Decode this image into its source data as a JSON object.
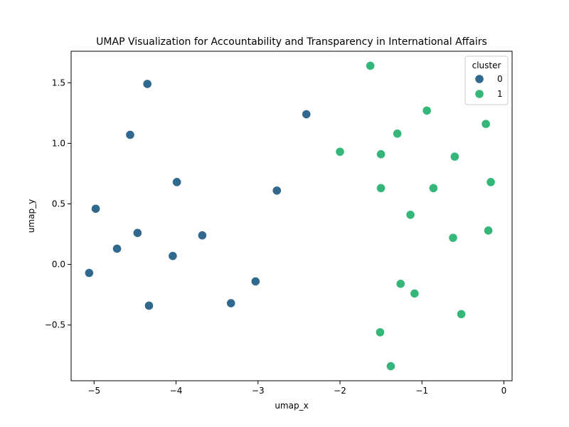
{
  "chart_data": {
    "type": "scatter",
    "title": "UMAP Visualization for Accountability and Transparency in International Affairs",
    "xlabel": "umap_x",
    "ylabel": "umap_y",
    "xlim": [
      -5.28,
      0.1
    ],
    "ylim": [
      -0.96,
      1.76
    ],
    "xticks": [
      -5,
      -4,
      -3,
      -2,
      -1,
      0
    ],
    "xtick_labels": [
      "−5",
      "−4",
      "−3",
      "−2",
      "−1",
      "0"
    ],
    "yticks": [
      -0.5,
      0.0,
      0.5,
      1.0,
      1.5
    ],
    "ytick_labels": [
      "−0.5",
      "0.0",
      "0.5",
      "1.0",
      "1.5"
    ],
    "grid": false,
    "legend": {
      "title": "cluster",
      "placement": "top-right"
    },
    "series": [
      {
        "name": "0",
        "color": "#31688e",
        "points": [
          {
            "x": -4.35,
            "y": 1.49
          },
          {
            "x": -4.56,
            "y": 1.07
          },
          {
            "x": -2.41,
            "y": 1.24
          },
          {
            "x": -3.99,
            "y": 0.68
          },
          {
            "x": -4.98,
            "y": 0.46
          },
          {
            "x": -2.77,
            "y": 0.61
          },
          {
            "x": -4.47,
            "y": 0.26
          },
          {
            "x": -3.68,
            "y": 0.24
          },
          {
            "x": -4.72,
            "y": 0.13
          },
          {
            "x": -4.04,
            "y": 0.07
          },
          {
            "x": -5.06,
            "y": -0.07
          },
          {
            "x": -3.03,
            "y": -0.14
          },
          {
            "x": -3.33,
            "y": -0.32
          },
          {
            "x": -4.33,
            "y": -0.34
          }
        ]
      },
      {
        "name": "1",
        "color": "#35b779",
        "points": [
          {
            "x": -1.63,
            "y": 1.64
          },
          {
            "x": -0.94,
            "y": 1.27
          },
          {
            "x": -0.22,
            "y": 1.16
          },
          {
            "x": -1.3,
            "y": 1.08
          },
          {
            "x": -2.0,
            "y": 0.93
          },
          {
            "x": -1.5,
            "y": 0.91
          },
          {
            "x": -0.6,
            "y": 0.89
          },
          {
            "x": -0.16,
            "y": 0.68
          },
          {
            "x": -1.5,
            "y": 0.63
          },
          {
            "x": -0.86,
            "y": 0.63
          },
          {
            "x": -1.14,
            "y": 0.41
          },
          {
            "x": -0.19,
            "y": 0.28
          },
          {
            "x": -0.62,
            "y": 0.22
          },
          {
            "x": -1.26,
            "y": -0.16
          },
          {
            "x": -1.09,
            "y": -0.24
          },
          {
            "x": -0.52,
            "y": -0.41
          },
          {
            "x": -1.51,
            "y": -0.56
          },
          {
            "x": -1.38,
            "y": -0.84
          }
        ]
      }
    ]
  }
}
